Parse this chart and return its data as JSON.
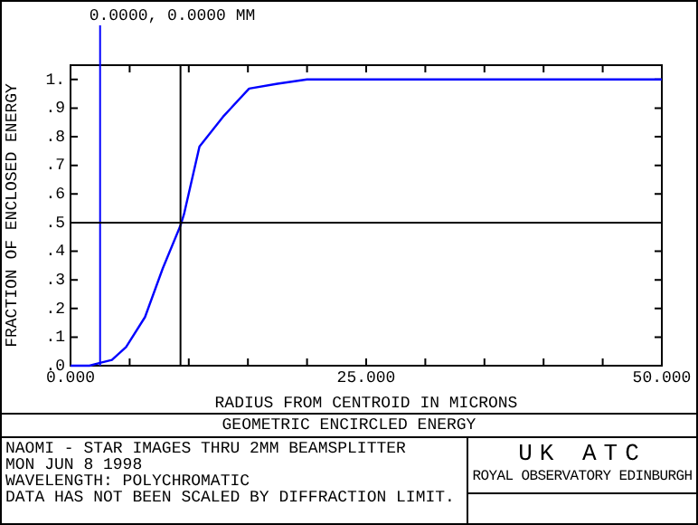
{
  "chart_data": {
    "type": "line",
    "title": "GEOMETRIC ENCIRCLED ENERGY",
    "xlabel": "RADIUS FROM CENTROID IN MICRONS",
    "ylabel": "FRACTION OF ENCLOSED ENERGY",
    "x": [
      0,
      1.6,
      2.5,
      3.5,
      4.7,
      6.3,
      7.8,
      9.3,
      9.6,
      10.9,
      12.9,
      15.1,
      17.5,
      20,
      50
    ],
    "series": [
      {
        "color": "#0000ff",
        "values": [
          0,
          0,
          0.01,
          0.02,
          0.065,
          0.17,
          0.34,
          0.49,
          0.53,
          0.765,
          0.87,
          0.968,
          0.985,
          1.0,
          1.0
        ]
      }
    ],
    "xlim": [
      0,
      50
    ],
    "xticks": [
      {
        "value": 0,
        "label": "0.000"
      },
      {
        "value": 5,
        "label": null
      },
      {
        "value": 10,
        "label": null
      },
      {
        "value": 15,
        "label": null
      },
      {
        "value": 20,
        "label": null
      },
      {
        "value": 25,
        "label": "25.000"
      },
      {
        "value": 30,
        "label": null
      },
      {
        "value": 35,
        "label": null
      },
      {
        "value": 40,
        "label": null
      },
      {
        "value": 45,
        "label": null
      },
      {
        "value": 50,
        "label": "50.000"
      }
    ],
    "ylim": [
      0,
      1.05
    ],
    "yticks": [
      {
        "value": 0,
        "label": ".0"
      },
      {
        "value": 0.1,
        "label": ".1"
      },
      {
        "value": 0.2,
        "label": ".2"
      },
      {
        "value": 0.3,
        "label": ".3"
      },
      {
        "value": 0.4,
        "label": ".4"
      },
      {
        "value": 0.5,
        "label": ".5"
      },
      {
        "value": 0.6,
        "label": ".6"
      },
      {
        "value": 0.7,
        "label": ".7"
      },
      {
        "value": 0.8,
        "label": ".8"
      },
      {
        "value": 0.9,
        "label": ".9"
      },
      {
        "value": 1,
        "label": "1."
      }
    ],
    "ref_lines": [
      {
        "axis": "x",
        "value": 2.5,
        "label": "0.0000, 0.0000 MM",
        "color": "#0000ff"
      },
      {
        "axis": "y",
        "value": 0.5,
        "color": "#000000"
      },
      {
        "axis": "x",
        "value": 9.3,
        "color": "#000000"
      }
    ],
    "annotations": [
      "NAOMI - STAR IMAGES THRU 2MM BEAMSPLITTER",
      "MON JUN 8 1998",
      "WAVELENGTH: POLYCHROMATIC",
      "DATA HAS NOT BEEN SCALED BY DIFFRACTION LIMIT.",
      "UK ATC",
      "ROYAL OBSERVATORY EDINBURGH"
    ],
    "grid": false,
    "legend": false,
    "marker": "none",
    "line_style": "solid"
  }
}
